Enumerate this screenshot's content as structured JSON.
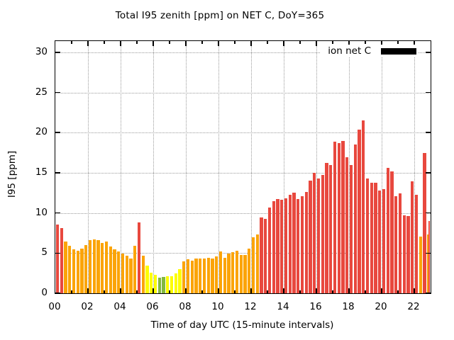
{
  "title_color": "#000000",
  "legend": {
    "label": "ion net C",
    "swatch_color": "#000000"
  },
  "chart_data": {
    "type": "bar",
    "title": "Total I95 zenith [ppm] on NET C, DoY=365",
    "xlabel": "Time of day UTC (15-minute intervals)",
    "ylabel": "I95 [ppm]",
    "ylim": [
      0,
      31.4
    ],
    "ytick_values": [
      0,
      5,
      10,
      15,
      20,
      25,
      30
    ],
    "xtick_major_hours": [
      0,
      2,
      4,
      6,
      8,
      10,
      12,
      14,
      16,
      18,
      20,
      22
    ],
    "xtick_major_labels": [
      "00",
      "02",
      "04",
      "06",
      "08",
      "10",
      "12",
      "14",
      "16",
      "18",
      "20",
      "22"
    ],
    "x_hours_max": 23.0,
    "bar_interval_minutes": 15,
    "grid": true,
    "legend_position": "top-right-inside",
    "colors": {
      "red": "#e8483e",
      "orange": "#fba407",
      "yellow": "#fdfd00",
      "green": "#82b840"
    },
    "series": [
      {
        "name": "ion net C"
      }
    ],
    "bars": [
      {
        "time": "00:00",
        "value": 8.6,
        "color": "red"
      },
      {
        "time": "00:15",
        "value": 8.1,
        "color": "red"
      },
      {
        "time": "00:30",
        "value": 6.4,
        "color": "orange"
      },
      {
        "time": "00:45",
        "value": 5.9,
        "color": "orange"
      },
      {
        "time": "01:00",
        "value": 5.5,
        "color": "orange"
      },
      {
        "time": "01:15",
        "value": 5.3,
        "color": "orange"
      },
      {
        "time": "01:30",
        "value": 5.6,
        "color": "orange"
      },
      {
        "time": "01:45",
        "value": 6.0,
        "color": "orange"
      },
      {
        "time": "02:00",
        "value": 6.6,
        "color": "orange"
      },
      {
        "time": "02:15",
        "value": 6.7,
        "color": "orange"
      },
      {
        "time": "02:30",
        "value": 6.6,
        "color": "orange"
      },
      {
        "time": "02:45",
        "value": 6.3,
        "color": "orange"
      },
      {
        "time": "03:00",
        "value": 6.4,
        "color": "orange"
      },
      {
        "time": "03:15",
        "value": 5.8,
        "color": "orange"
      },
      {
        "time": "03:30",
        "value": 5.5,
        "color": "orange"
      },
      {
        "time": "03:45",
        "value": 5.2,
        "color": "orange"
      },
      {
        "time": "04:00",
        "value": 4.9,
        "color": "orange"
      },
      {
        "time": "04:15",
        "value": 4.7,
        "color": "orange"
      },
      {
        "time": "04:30",
        "value": 4.3,
        "color": "orange"
      },
      {
        "time": "04:45",
        "value": 5.9,
        "color": "orange"
      },
      {
        "time": "05:00",
        "value": 8.8,
        "color": "red"
      },
      {
        "time": "05:15",
        "value": 4.7,
        "color": "orange"
      },
      {
        "time": "05:30",
        "value": 3.4,
        "color": "yellow"
      },
      {
        "time": "05:45",
        "value": 2.6,
        "color": "yellow"
      },
      {
        "time": "06:00",
        "value": 2.3,
        "color": "yellow"
      },
      {
        "time": "06:15",
        "value": 1.9,
        "color": "green"
      },
      {
        "time": "06:30",
        "value": 2.0,
        "color": "green"
      },
      {
        "time": "06:45",
        "value": 2.1,
        "color": "yellow"
      },
      {
        "time": "07:00",
        "value": 2.1,
        "color": "yellow"
      },
      {
        "time": "07:15",
        "value": 2.5,
        "color": "yellow"
      },
      {
        "time": "07:30",
        "value": 3.0,
        "color": "yellow"
      },
      {
        "time": "07:45",
        "value": 4.0,
        "color": "orange"
      },
      {
        "time": "08:00",
        "value": 4.2,
        "color": "orange"
      },
      {
        "time": "08:15",
        "value": 4.1,
        "color": "orange"
      },
      {
        "time": "08:30",
        "value": 4.3,
        "color": "orange"
      },
      {
        "time": "08:45",
        "value": 4.3,
        "color": "orange"
      },
      {
        "time": "09:00",
        "value": 4.3,
        "color": "orange"
      },
      {
        "time": "09:15",
        "value": 4.4,
        "color": "orange"
      },
      {
        "time": "09:30",
        "value": 4.3,
        "color": "orange"
      },
      {
        "time": "09:45",
        "value": 4.6,
        "color": "orange"
      },
      {
        "time": "10:00",
        "value": 5.2,
        "color": "orange"
      },
      {
        "time": "10:15",
        "value": 4.4,
        "color": "orange"
      },
      {
        "time": "10:30",
        "value": 4.9,
        "color": "orange"
      },
      {
        "time": "10:45",
        "value": 5.1,
        "color": "orange"
      },
      {
        "time": "11:00",
        "value": 5.3,
        "color": "orange"
      },
      {
        "time": "11:15",
        "value": 4.8,
        "color": "orange"
      },
      {
        "time": "11:30",
        "value": 4.8,
        "color": "orange"
      },
      {
        "time": "11:45",
        "value": 5.6,
        "color": "orange"
      },
      {
        "time": "12:00",
        "value": 7.0,
        "color": "orange"
      },
      {
        "time": "12:15",
        "value": 7.3,
        "color": "orange"
      },
      {
        "time": "12:30",
        "value": 9.4,
        "color": "red"
      },
      {
        "time": "12:45",
        "value": 9.3,
        "color": "red"
      },
      {
        "time": "13:00",
        "value": 10.7,
        "color": "red"
      },
      {
        "time": "13:15",
        "value": 11.5,
        "color": "red"
      },
      {
        "time": "13:30",
        "value": 11.7,
        "color": "red"
      },
      {
        "time": "13:45",
        "value": 11.6,
        "color": "red"
      },
      {
        "time": "14:00",
        "value": 11.8,
        "color": "red"
      },
      {
        "time": "14:15",
        "value": 12.3,
        "color": "red"
      },
      {
        "time": "14:30",
        "value": 12.5,
        "color": "red"
      },
      {
        "time": "14:45",
        "value": 11.7,
        "color": "red"
      },
      {
        "time": "15:00",
        "value": 12.1,
        "color": "red"
      },
      {
        "time": "15:15",
        "value": 12.6,
        "color": "red"
      },
      {
        "time": "15:30",
        "value": 14.0,
        "color": "red"
      },
      {
        "time": "15:45",
        "value": 15.0,
        "color": "red"
      },
      {
        "time": "16:00",
        "value": 14.3,
        "color": "red"
      },
      {
        "time": "16:15",
        "value": 14.7,
        "color": "red"
      },
      {
        "time": "16:30",
        "value": 16.2,
        "color": "red"
      },
      {
        "time": "16:45",
        "value": 16.0,
        "color": "red"
      },
      {
        "time": "17:00",
        "value": 18.9,
        "color": "red"
      },
      {
        "time": "17:15",
        "value": 18.7,
        "color": "red"
      },
      {
        "time": "17:30",
        "value": 19.0,
        "color": "red"
      },
      {
        "time": "17:45",
        "value": 16.9,
        "color": "red"
      },
      {
        "time": "18:00",
        "value": 16.0,
        "color": "red"
      },
      {
        "time": "18:15",
        "value": 18.5,
        "color": "red"
      },
      {
        "time": "18:30",
        "value": 20.4,
        "color": "red"
      },
      {
        "time": "18:45",
        "value": 21.5,
        "color": "red"
      },
      {
        "time": "19:00",
        "value": 14.3,
        "color": "red"
      },
      {
        "time": "19:15",
        "value": 13.8,
        "color": "red"
      },
      {
        "time": "19:30",
        "value": 13.8,
        "color": "red"
      },
      {
        "time": "19:45",
        "value": 12.8,
        "color": "red"
      },
      {
        "time": "20:00",
        "value": 13.0,
        "color": "red"
      },
      {
        "time": "20:15",
        "value": 15.6,
        "color": "red"
      },
      {
        "time": "20:30",
        "value": 15.2,
        "color": "red"
      },
      {
        "time": "20:45",
        "value": 12.1,
        "color": "red"
      },
      {
        "time": "21:00",
        "value": 12.4,
        "color": "red"
      },
      {
        "time": "21:15",
        "value": 9.7,
        "color": "red"
      },
      {
        "time": "21:30",
        "value": 9.6,
        "color": "red"
      },
      {
        "time": "21:45",
        "value": 13.9,
        "color": "red"
      },
      {
        "time": "22:00",
        "value": 12.3,
        "color": "red"
      },
      {
        "time": "22:15",
        "value": 7.1,
        "color": "orange"
      },
      {
        "time": "22:30",
        "value": 17.5,
        "color": "red"
      },
      {
        "time": "22:45",
        "value": 7.3,
        "color": "orange"
      },
      {
        "time": "23:00",
        "value": 9.0,
        "color": "red"
      }
    ]
  }
}
